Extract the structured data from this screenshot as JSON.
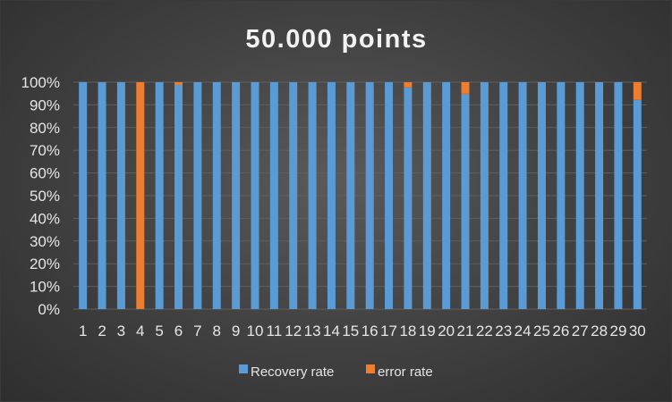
{
  "chart_data": {
    "type": "bar",
    "stacked": true,
    "title": "50.000 points",
    "xlabel": "",
    "ylabel": "",
    "ylim": [
      0,
      100
    ],
    "y_ticks": [
      "0%",
      "10%",
      "20%",
      "30%",
      "40%",
      "50%",
      "60%",
      "70%",
      "80%",
      "90%",
      "100%"
    ],
    "categories": [
      "1",
      "2",
      "3",
      "4",
      "5",
      "6",
      "7",
      "8",
      "9",
      "10",
      "11",
      "12",
      "13",
      "14",
      "15",
      "16",
      "17",
      "18",
      "19",
      "20",
      "21",
      "22",
      "23",
      "24",
      "25",
      "26",
      "27",
      "28",
      "29",
      "30"
    ],
    "series": [
      {
        "name": "Recovery rate",
        "color": "#5b9bd5",
        "values": [
          100,
          100,
          100,
          0,
          100,
          99,
          100,
          100,
          100,
          100,
          100,
          100,
          100,
          100,
          100,
          100,
          100,
          98,
          100,
          100,
          95,
          100,
          100,
          100,
          100,
          100,
          100,
          100,
          100,
          92.5
        ]
      },
      {
        "name": "error rate",
        "color": "#ed7d31",
        "values": [
          0,
          0,
          0,
          100,
          0,
          1,
          0,
          0,
          0,
          0,
          0,
          0,
          0,
          0,
          0,
          0,
          0,
          2,
          0,
          0,
          5,
          0,
          0,
          0,
          0,
          0,
          0,
          0,
          0,
          7.5
        ]
      }
    ],
    "grid": true,
    "legend_position": "bottom"
  }
}
